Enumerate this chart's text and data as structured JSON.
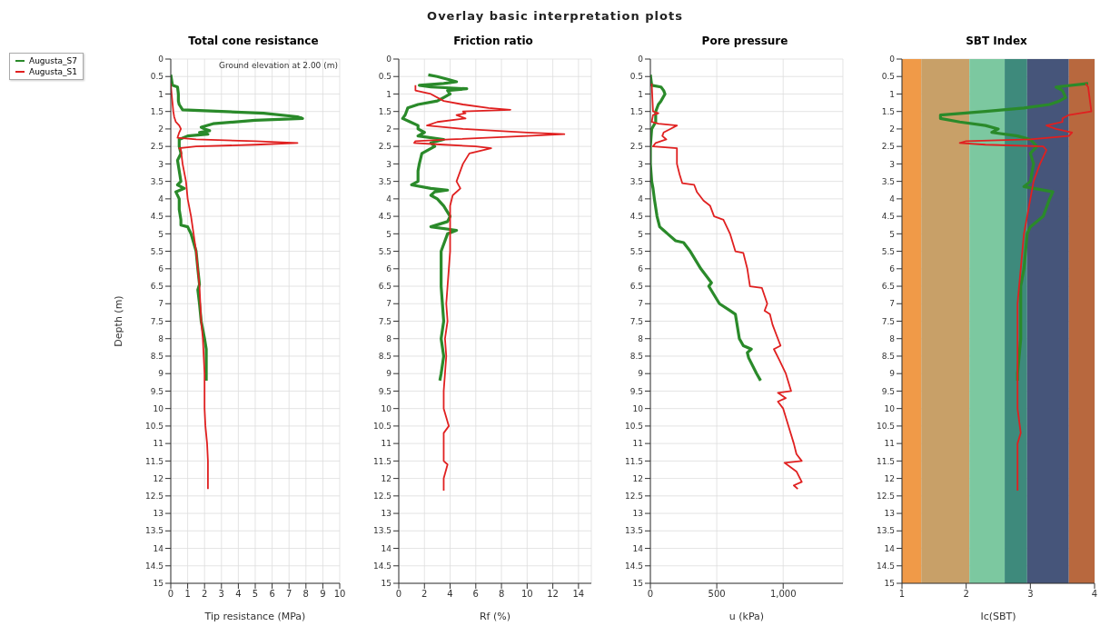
{
  "chart_data": [
    {
      "type": "line",
      "title": "Total cone resistance",
      "xlabel": "Tip resistance (MPa)",
      "ylabel": "Depth (m)",
      "legend": "left",
      "grid": true,
      "annotations": [
        "Overlay basic interpretation plots",
        "Ground elevation at 2.00 (m)"
      ],
      "xlim": [
        0,
        10
      ],
      "xticks": [
        0,
        1,
        2,
        3,
        4,
        5,
        6,
        7,
        8,
        9,
        10
      ],
      "ylim": [
        15,
        0
      ],
      "yticks": [
        0,
        0.5,
        1,
        1.5,
        2,
        2.5,
        3,
        3.5,
        4,
        4.5,
        5,
        5.5,
        6,
        6.5,
        7,
        7.5,
        8,
        8.5,
        9,
        9.5,
        10,
        10.5,
        11,
        11.5,
        12,
        12.5,
        13,
        13.5,
        14,
        14.5,
        15
      ],
      "series": [
        {
          "name": "Augusta_S7",
          "color": "#2a8a2a",
          "x": [
            0,
            0.1,
            0.4,
            0.45,
            0.45,
            0.5,
            0.7,
            3.0,
            5.5,
            7.5,
            7.8,
            5.0,
            2.5,
            1.8,
            2.0,
            2.3,
            1.7,
            2.2,
            1.0,
            0.5,
            0.5,
            0.6,
            0.4,
            0.5,
            0.6,
            0.4,
            0.8,
            0.3,
            0.5,
            0.5,
            0.6,
            0.6,
            1.0,
            1.2,
            1.5,
            1.6,
            1.7,
            1.6,
            1.7,
            1.8,
            2.0,
            2.1,
            2.1,
            2.1,
            2.1
          ],
          "values": [
            0.45,
            0.75,
            0.8,
            1.0,
            1.2,
            1.3,
            1.45,
            1.5,
            1.55,
            1.65,
            1.7,
            1.75,
            1.85,
            1.95,
            2.0,
            2.05,
            2.1,
            2.15,
            2.2,
            2.3,
            2.5,
            2.7,
            2.9,
            3.2,
            3.5,
            3.6,
            3.7,
            3.8,
            4.0,
            4.3,
            4.6,
            4.75,
            4.8,
            5.0,
            5.5,
            6.0,
            6.45,
            6.6,
            7.0,
            7.5,
            8.0,
            8.3,
            8.5,
            9.0,
            9.2
          ]
        },
        {
          "name": "Augusta_S1",
          "color": "#e02020",
          "x": [
            0,
            0.05,
            0.15,
            0.2,
            0.3,
            0.5,
            0.6,
            0.5,
            0.4,
            1.5,
            5.0,
            7.5,
            5.0,
            1.5,
            0.5,
            0.6,
            0.7,
            0.9,
            1.0,
            1.2,
            1.35,
            1.5,
            1.6,
            1.7,
            1.75,
            1.8,
            1.9,
            1.95,
            2.0,
            2.0,
            2.0,
            2.05,
            2.15,
            2.2,
            2.2,
            2.2
          ],
          "values": [
            0.7,
            1.0,
            1.5,
            1.65,
            1.8,
            1.9,
            2.0,
            2.1,
            2.25,
            2.3,
            2.35,
            2.4,
            2.45,
            2.5,
            2.55,
            2.6,
            3.0,
            3.5,
            4.0,
            4.5,
            5.0,
            5.5,
            6.0,
            6.5,
            7.0,
            7.5,
            8.0,
            8.5,
            9.0,
            9.5,
            10.0,
            10.5,
            11.0,
            11.5,
            12.0,
            12.3
          ]
        }
      ]
    },
    {
      "type": "line",
      "title": "Friction ratio",
      "xlabel": "Rf (%)",
      "grid": true,
      "xlim": [
        0,
        15
      ],
      "xticks": [
        0,
        2,
        4,
        6,
        8,
        10,
        12,
        14
      ],
      "ylim": [
        15,
        0
      ],
      "yticks": [
        0,
        0.5,
        1,
        1.5,
        2,
        2.5,
        3,
        3.5,
        4,
        4.5,
        5,
        5.5,
        6,
        6.5,
        7,
        7.5,
        8,
        8.5,
        9,
        9.5,
        10,
        10.5,
        11,
        11.5,
        12,
        12.5,
        13,
        13.5,
        14,
        14.5,
        15
      ],
      "series": [
        {
          "color": "#2a8a2a",
          "x": [
            2.3,
            3.0,
            4.0,
            4.5,
            3.5,
            1.6,
            2.5,
            5.3,
            3.8,
            4.0,
            3.5,
            3.0,
            1.5,
            0.7,
            0.6,
            0.5,
            0.3,
            0.9,
            1.5,
            1.5,
            2.0,
            1.5,
            3.5,
            2.5,
            2.8,
            1.8,
            1.6,
            1.5,
            1.5,
            1.0,
            2.5,
            3.8,
            2.8,
            2.5,
            3.0,
            3.5,
            4.0,
            3.8,
            2.5,
            4.5,
            3.8,
            3.3,
            3.3,
            3.3,
            3.4,
            3.5,
            3.3,
            3.5,
            3.3,
            3.2
          ],
          "values": [
            0.45,
            0.5,
            0.6,
            0.65,
            0.7,
            0.75,
            0.8,
            0.85,
            0.9,
            1.0,
            1.1,
            1.2,
            1.3,
            1.4,
            1.5,
            1.6,
            1.7,
            1.8,
            1.9,
            2.0,
            2.1,
            2.2,
            2.3,
            2.4,
            2.5,
            2.7,
            3.0,
            3.2,
            3.5,
            3.6,
            3.7,
            3.75,
            3.8,
            3.9,
            4.0,
            4.2,
            4.5,
            4.65,
            4.8,
            4.9,
            5.0,
            5.5,
            6.0,
            6.5,
            7.0,
            7.5,
            8.0,
            8.5,
            9.0,
            9.2
          ]
        },
        {
          "color": "#e02020",
          "x": [
            1.3,
            1.3,
            2.5,
            3.5,
            5.0,
            7.0,
            8.7,
            5.0,
            5.2,
            4.5,
            5.2,
            3.0,
            2.2,
            5.0,
            10.0,
            12.9,
            10.0,
            4.0,
            1.3,
            1.2,
            3.5,
            6.0,
            7.2,
            5.5,
            5.0,
            4.5,
            4.8,
            4.2,
            4.0,
            4.0,
            4.0,
            4.0,
            3.9,
            3.7,
            3.8,
            3.6,
            3.7,
            3.6,
            3.5,
            3.5,
            3.9,
            3.5,
            3.5,
            3.8,
            3.5,
            3.5
          ],
          "values": [
            0.75,
            0.9,
            1.0,
            1.2,
            1.3,
            1.4,
            1.45,
            1.5,
            1.55,
            1.6,
            1.7,
            1.8,
            1.9,
            2.0,
            2.1,
            2.15,
            2.2,
            2.3,
            2.35,
            2.4,
            2.45,
            2.5,
            2.55,
            2.7,
            3.0,
            3.5,
            3.7,
            3.9,
            4.2,
            4.5,
            5.0,
            5.5,
            6.0,
            7.0,
            7.5,
            8.0,
            8.5,
            9.0,
            9.5,
            10.0,
            10.5,
            10.7,
            11.5,
            11.6,
            12.0,
            12.35
          ]
        }
      ]
    },
    {
      "type": "line",
      "title": "Pore pressure",
      "xlabel": "u (kPa)",
      "grid": true,
      "xlim": [
        0,
        1450
      ],
      "xticks": [
        0,
        500,
        {
          "value": 1000,
          "label": "1,000"
        }
      ],
      "ylim": [
        15,
        0
      ],
      "yticks": [
        0,
        0.5,
        1,
        1.5,
        2,
        2.5,
        3,
        3.5,
        4,
        4.5,
        5,
        5.5,
        6,
        6.5,
        7,
        7.5,
        8,
        8.5,
        9,
        9.5,
        10,
        10.5,
        11,
        11.5,
        12,
        12.5,
        13,
        13.5,
        14,
        14.5,
        15
      ],
      "series": [
        {
          "color": "#2a8a2a",
          "x": [
            0,
            10,
            80,
            100,
            110,
            80,
            60,
            40,
            40,
            10,
            0,
            0,
            10,
            20,
            30,
            50,
            70,
            100,
            130,
            190,
            250,
            300,
            380,
            420,
            460,
            440,
            520,
            600,
            640,
            670,
            700,
            760,
            730,
            740,
            800,
            830
          ],
          "values": [
            0.45,
            0.75,
            0.8,
            0.9,
            1.0,
            1.2,
            1.3,
            1.5,
            1.8,
            2.0,
            2.5,
            3.0,
            3.5,
            3.7,
            4.0,
            4.5,
            4.8,
            4.9,
            5.0,
            5.2,
            5.25,
            5.5,
            6.0,
            6.2,
            6.4,
            6.5,
            7.0,
            7.2,
            7.3,
            8.0,
            8.2,
            8.3,
            8.4,
            8.55,
            9.0,
            9.2
          ]
        },
        {
          "color": "#e02020",
          "x": [
            10,
            20,
            60,
            20,
            10,
            60,
            200,
            150,
            100,
            90,
            120,
            40,
            20,
            200,
            200,
            200,
            220,
            240,
            330,
            350,
            370,
            400,
            450,
            480,
            550,
            600,
            640,
            700,
            730,
            750,
            840,
            880,
            860,
            900,
            920,
            960,
            980,
            930,
            970,
            1020,
            1060,
            960,
            1020,
            960,
            1000,
            1040,
            1080,
            1100,
            1140,
            1010,
            1100,
            1140,
            1080,
            1110
          ],
          "values": [
            0.7,
            1.5,
            1.55,
            1.6,
            1.8,
            1.85,
            1.9,
            2.0,
            2.1,
            2.2,
            2.3,
            2.4,
            2.5,
            2.55,
            2.7,
            3.0,
            3.3,
            3.55,
            3.6,
            3.8,
            3.9,
            4.05,
            4.2,
            4.5,
            4.6,
            5.0,
            5.5,
            5.55,
            6.0,
            6.5,
            6.55,
            7.0,
            7.2,
            7.3,
            7.6,
            8.0,
            8.2,
            8.3,
            8.6,
            9.0,
            9.5,
            9.55,
            9.7,
            9.8,
            10.0,
            10.5,
            11.0,
            11.3,
            11.5,
            11.55,
            11.8,
            12.1,
            12.2,
            12.3
          ]
        }
      ]
    },
    {
      "type": "line",
      "title": "SBT Index",
      "xlabel": "Ic(SBT)",
      "grid": true,
      "xlim": [
        1,
        4
      ],
      "xticks": [
        1,
        2,
        3,
        4
      ],
      "ylim": [
        15,
        0
      ],
      "yticks": [
        0,
        0.5,
        1,
        1.5,
        2,
        2.5,
        3,
        3.5,
        4,
        4.5,
        5,
        5.5,
        6,
        6.5,
        7,
        7.5,
        8,
        8.5,
        9,
        9.5,
        10,
        10.5,
        11,
        11.5,
        12,
        12.5,
        13,
        13.5,
        14,
        14.5,
        15
      ],
      "bands": [
        {
          "axis": "x",
          "from": 1,
          "to": 1.3,
          "color": "#f09a48"
        },
        {
          "axis": "x",
          "from": 1.3,
          "to": 2.05,
          "color": "#c8a068"
        },
        {
          "axis": "x",
          "from": 2.05,
          "to": 2.6,
          "color": "#7cc8a0"
        },
        {
          "axis": "x",
          "from": 2.6,
          "to": 2.95,
          "color": "#3e8a7c"
        },
        {
          "axis": "x",
          "from": 2.95,
          "to": 3.6,
          "color": "#46557a"
        },
        {
          "axis": "x",
          "from": 3.6,
          "to": 4,
          "color": "#b8683e"
        }
      ],
      "series": [
        {
          "color": "#2a8a2a",
          "x": [
            3.9,
            3.4,
            3.5,
            3.55,
            3.45,
            3.3,
            2.9,
            2.3,
            1.6,
            1.6,
            1.9,
            2.3,
            2.5,
            2.4,
            2.8,
            3.0,
            3.1,
            3.0,
            3.05,
            3.0,
            2.9,
            3.35,
            3.3,
            3.2,
            3.0,
            2.95,
            2.9,
            2.85,
            2.85,
            2.85,
            2.8,
            2.8
          ],
          "values": [
            0.7,
            0.8,
            0.9,
            1.1,
            1.2,
            1.3,
            1.4,
            1.5,
            1.6,
            1.7,
            1.8,
            1.9,
            2.0,
            2.1,
            2.2,
            2.3,
            2.5,
            2.7,
            3.0,
            3.5,
            3.65,
            3.8,
            4.0,
            4.5,
            4.8,
            5.0,
            6.0,
            6.5,
            7.0,
            8.0,
            9.0,
            9.2
          ]
        },
        {
          "color": "#e02020",
          "x": [
            3.86,
            3.9,
            3.95,
            3.6,
            3.5,
            3.5,
            3.25,
            3.4,
            3.65,
            3.6,
            3.0,
            2.0,
            1.9,
            2.3,
            3.2,
            3.25,
            3.15,
            3.05,
            3.0,
            2.95,
            2.9,
            2.85,
            2.8,
            2.8,
            2.8,
            2.8,
            2.85,
            2.8,
            2.8,
            2.8
          ],
          "values": [
            0.7,
            0.8,
            1.5,
            1.6,
            1.7,
            1.8,
            1.9,
            2.0,
            2.1,
            2.2,
            2.3,
            2.35,
            2.4,
            2.45,
            2.5,
            2.6,
            3.0,
            3.5,
            4.0,
            4.5,
            5.0,
            6.0,
            7.0,
            8.0,
            9.0,
            10.0,
            10.7,
            11.0,
            11.5,
            12.35
          ]
        }
      ]
    }
  ]
}
